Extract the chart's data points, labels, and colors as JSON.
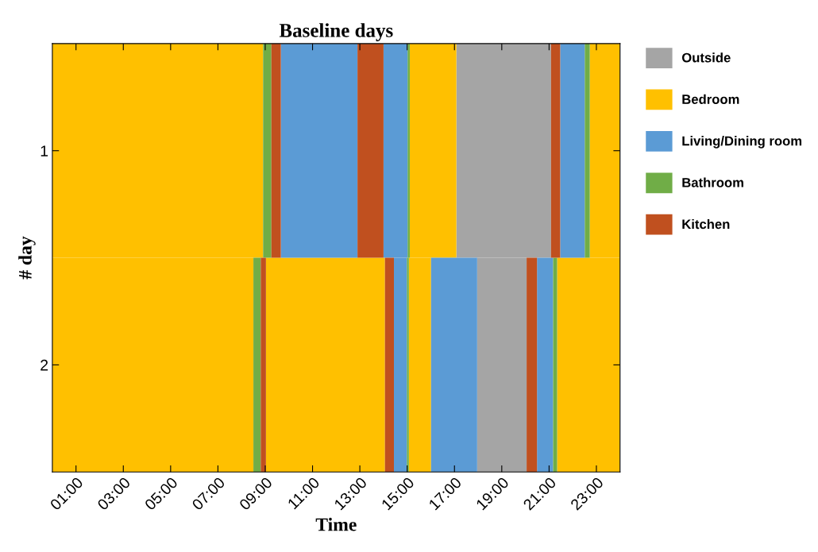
{
  "chart_data": {
    "type": "bar",
    "orientation": "horizontal",
    "title": "Baseline days",
    "xlabel": "Time",
    "ylabel": "# day",
    "categories": [
      "1",
      "2"
    ],
    "xlim": [
      0,
      24
    ],
    "xticks": [
      {
        "value": 1,
        "label": "01:00"
      },
      {
        "value": 3,
        "label": "03:00"
      },
      {
        "value": 5,
        "label": "05:00"
      },
      {
        "value": 7,
        "label": "07:00"
      },
      {
        "value": 9,
        "label": "09:00"
      },
      {
        "value": 11,
        "label": "11:00"
      },
      {
        "value": 13,
        "label": "13:00"
      },
      {
        "value": 15,
        "label": "15:00"
      },
      {
        "value": 17,
        "label": "17:00"
      },
      {
        "value": 19,
        "label": "19:00"
      },
      {
        "value": 21,
        "label": "21:00"
      },
      {
        "value": 23,
        "label": "23:00"
      }
    ],
    "series": [
      {
        "name": "Outside",
        "color": "#a5a5a5",
        "values": [
          4.0,
          2.09
        ],
        "base": [
          17.08,
          17.96
        ]
      },
      {
        "name": "Bedroom",
        "color": "#ffc000",
        "values": [
          8.91,
          8.5
        ],
        "base": [
          0,
          0
        ]
      },
      {
        "color": "#ffc000",
        "values": [
          1.97,
          5.03
        ],
        "base": [
          15.11,
          9.03
        ]
      },
      {
        "color": "#ffc000",
        "values": [
          1.28,
          0.94
        ],
        "base": [
          22.72,
          15.07
        ]
      },
      {
        "color": "#ffc000",
        "values": [
          null,
          2.66
        ],
        "base": [
          null,
          21.34
        ]
      },
      {
        "name": "Living/Dining room",
        "color": "#5b9bd5",
        "values": [
          3.24,
          0.55
        ],
        "base": [
          9.66,
          14.44
        ]
      },
      {
        "color": "#5b9bd5",
        "values": [
          1.02,
          1.95
        ],
        "base": [
          14.0,
          16.01
        ]
      },
      {
        "color": "#5b9bd5",
        "values": [
          1.04,
          0.68
        ],
        "base": [
          21.47,
          20.49
        ]
      },
      {
        "name": "Bathroom",
        "color": "#70ad47",
        "values": [
          0.35,
          0.31
        ],
        "base": [
          8.91,
          8.5
        ]
      },
      {
        "color": "#70ad47",
        "values": [
          0.09,
          0.08
        ],
        "base": [
          15.02,
          14.99
        ]
      },
      {
        "color": "#70ad47",
        "values": [
          0.21,
          0.17
        ],
        "base": [
          22.51,
          21.17
        ]
      },
      {
        "name": "Kitchen",
        "color": "#c0501f",
        "values": [
          0.4,
          0.22
        ],
        "base": [
          9.26,
          8.81
        ]
      },
      {
        "color": "#c0501f",
        "values": [
          1.1,
          0.38
        ],
        "base": [
          12.9,
          14.06
        ]
      },
      {
        "color": "#c0501f",
        "values": [
          0.39,
          0.44
        ],
        "base": [
          21.08,
          20.05
        ]
      }
    ],
    "grid": false,
    "legend": "right"
  }
}
